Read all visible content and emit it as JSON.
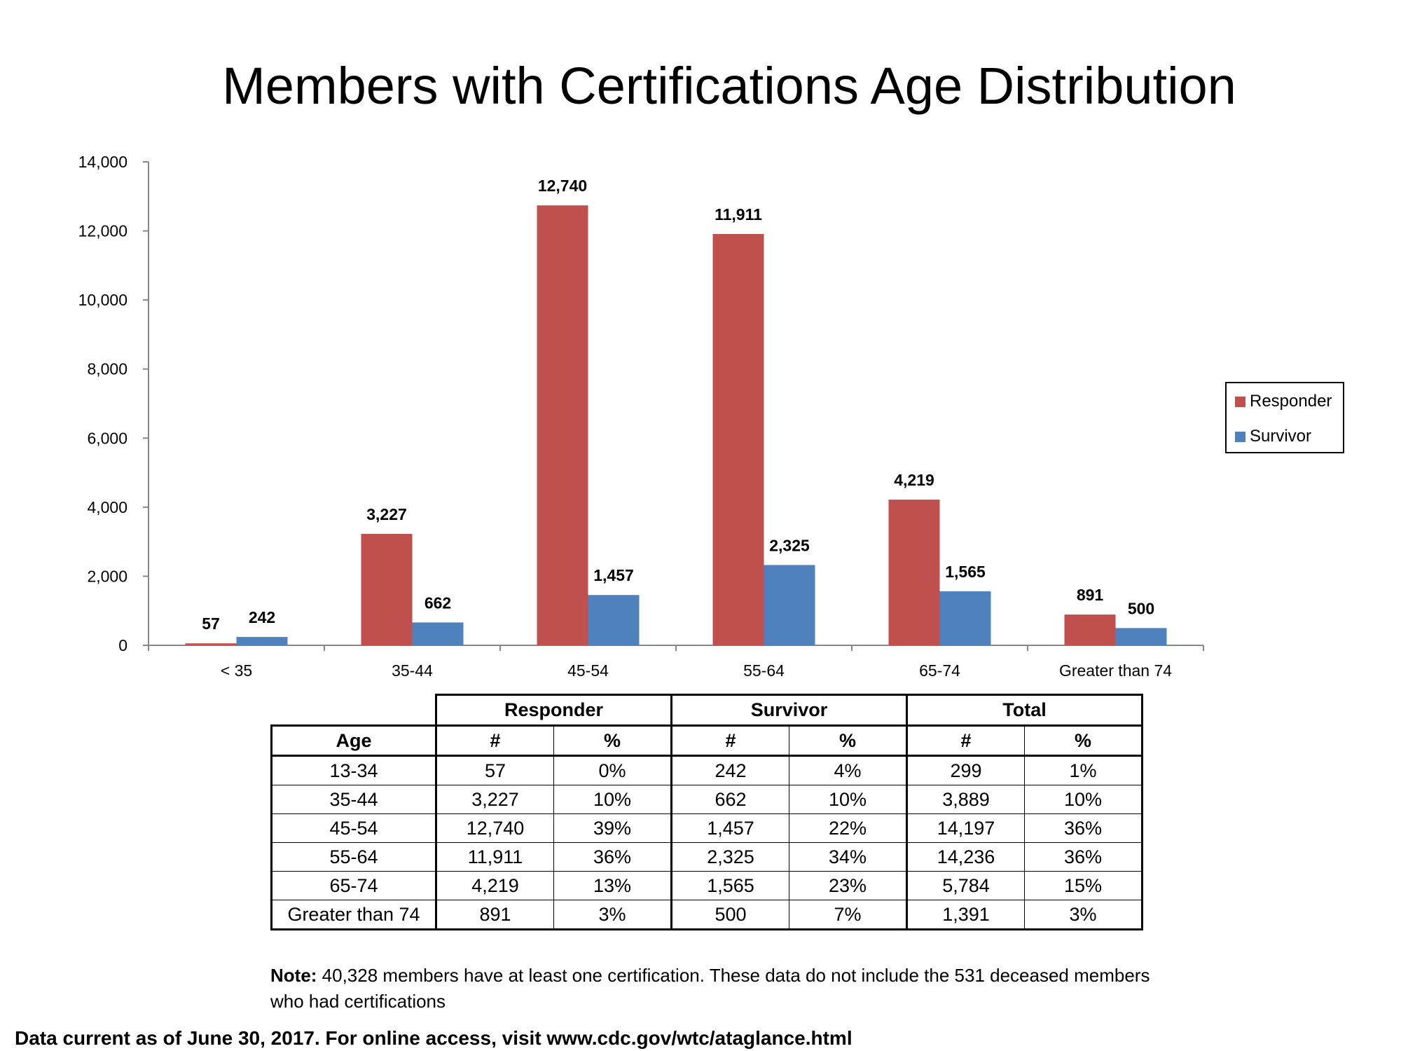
{
  "chart_data": {
    "type": "bar",
    "title": "Members with Certifications Age Distribution",
    "categories": [
      "< 35",
      "35-44",
      "45-54",
      "55-64",
      "65-74",
      "Greater than 74"
    ],
    "series": [
      {
        "name": "Responder",
        "color": "#C0504D",
        "values": [
          57,
          3227,
          12740,
          11911,
          4219,
          891
        ],
        "labels": [
          "57",
          "3,227",
          "12,740",
          "11,911",
          "4,219",
          "891"
        ]
      },
      {
        "name": "Survivor",
        "color": "#4F81BD",
        "values": [
          242,
          662,
          1457,
          2325,
          1565,
          500
        ],
        "labels": [
          "242",
          "662",
          "1,457",
          "2,325",
          "1,565",
          "500"
        ]
      }
    ],
    "ylim": [
      0,
      14000
    ],
    "yticks": [
      0,
      2000,
      4000,
      6000,
      8000,
      10000,
      12000,
      14000
    ],
    "ytick_labels": [
      "0",
      "2,000",
      "4,000",
      "6,000",
      "8,000",
      "10,000",
      "12,000",
      "14,000"
    ],
    "grid": false,
    "legend_position": "right"
  },
  "table": {
    "group_headers": [
      "Responder",
      "Survivor",
      "Total"
    ],
    "sub_headers": [
      "Age",
      "#",
      "%",
      "#",
      "%",
      "#",
      "%"
    ],
    "rows": [
      [
        "13-34",
        "57",
        "0%",
        "242",
        "4%",
        "299",
        "1%"
      ],
      [
        "35-44",
        "3,227",
        "10%",
        "662",
        "10%",
        "3,889",
        "10%"
      ],
      [
        "45-54",
        "12,740",
        "39%",
        "1,457",
        "22%",
        "14,197",
        "36%"
      ],
      [
        "55-64",
        "11,911",
        "36%",
        "2,325",
        "34%",
        "14,236",
        "36%"
      ],
      [
        "65-74",
        "4,219",
        "13%",
        "1,565",
        "23%",
        "5,784",
        "15%"
      ],
      [
        "Greater than 74",
        "891",
        "3%",
        "500",
        "7%",
        "1,391",
        "3%"
      ]
    ]
  },
  "note": {
    "label": "Note:",
    "text": " 40,328 members have at least one certification.  These data do not include the 531 deceased members who had certifications"
  },
  "footer": "Data current as of June 30, 2017. For online access, visit www.cdc.gov/wtc/ataglance.html"
}
